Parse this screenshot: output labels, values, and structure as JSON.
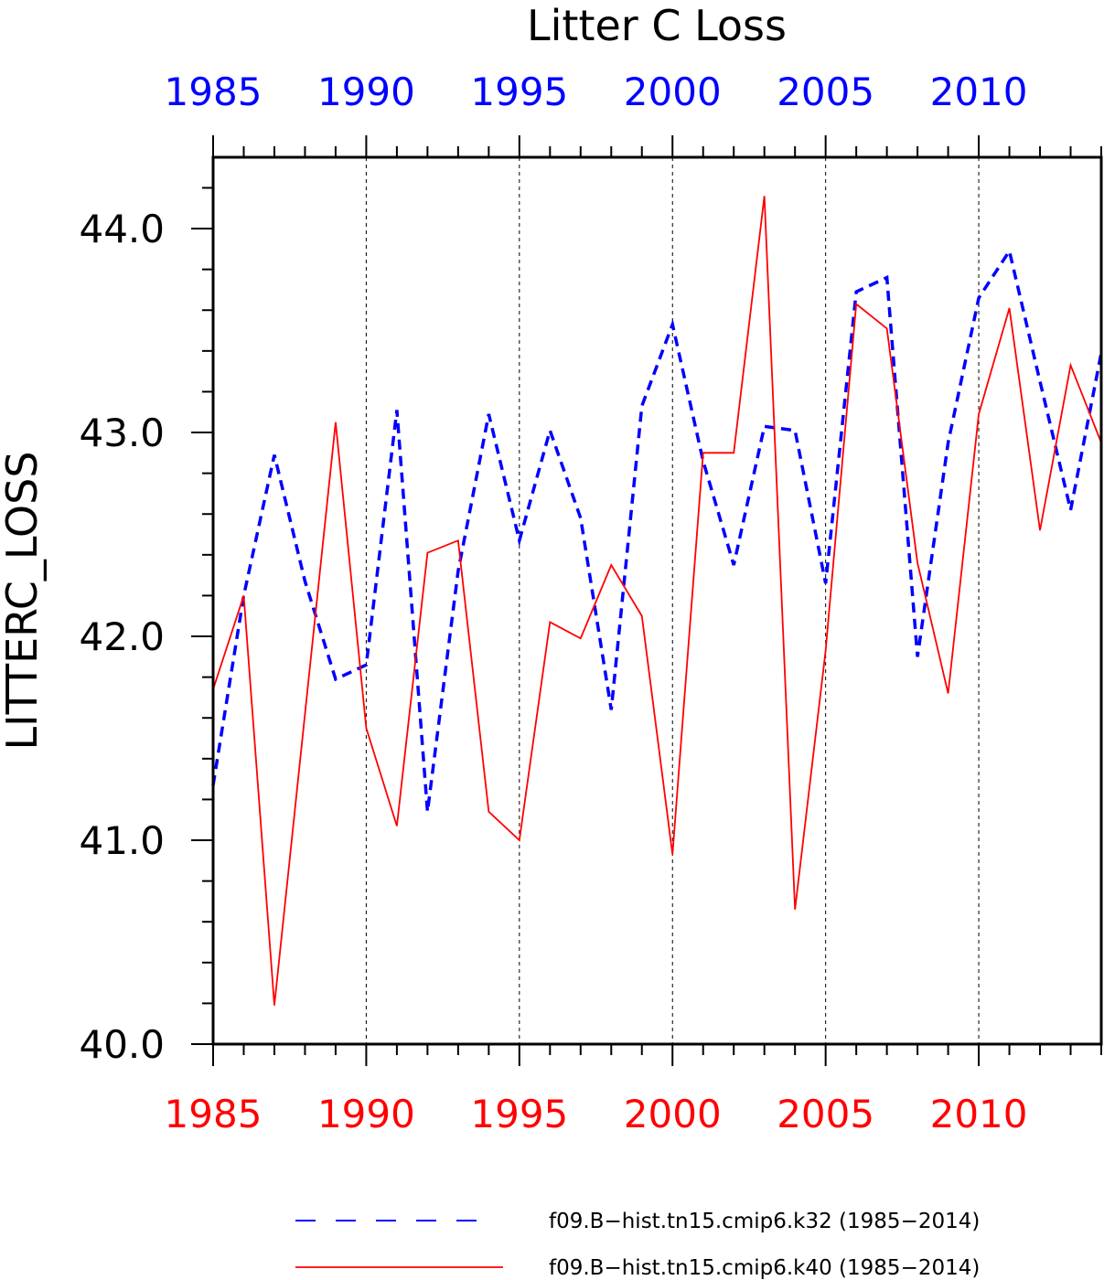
{
  "chart_data": {
    "type": "line",
    "title": "Litter C Loss",
    "ylabel": "LITTERC_LOSS",
    "xlabel": "",
    "xlim": [
      1985,
      2014
    ],
    "ylim": [
      40.0,
      44.35
    ],
    "x_ticks": [
      "1985",
      "1990",
      "1995",
      "2000",
      "2005",
      "2010"
    ],
    "y_ticks": [
      "40.0",
      "41.0",
      "42.0",
      "43.0",
      "44.0"
    ],
    "grid": "vertical dashed at major x ticks",
    "legend_position": "bottom",
    "top_axis_color": "#0000ff",
    "bottom_axis_color": "#ff0000",
    "x": [
      1985,
      1986,
      1987,
      1988,
      1989,
      1990,
      1991,
      1992,
      1993,
      1994,
      1995,
      1996,
      1997,
      1998,
      1999,
      2000,
      2001,
      2002,
      2003,
      2004,
      2005,
      2006,
      2007,
      2008,
      2009,
      2010,
      2011,
      2012,
      2013,
      2014
    ],
    "series": [
      {
        "name": "f09.B−hist.tn15.cmip6.k32 (1985−2014)",
        "color": "#0000ff",
        "dash": "dashed",
        "values": [
          41.27,
          42.2,
          42.89,
          42.27,
          41.79,
          41.86,
          43.11,
          41.14,
          42.32,
          43.09,
          42.47,
          43.01,
          42.58,
          41.64,
          43.13,
          43.53,
          42.86,
          42.35,
          43.03,
          43.01,
          42.26,
          43.69,
          43.76,
          41.9,
          42.95,
          43.66,
          43.89,
          43.25,
          42.62,
          43.39
        ]
      },
      {
        "name": "f09.B−hist.tn15.cmip6.k40 (1985−2014)",
        "color": "#ff0000",
        "dash": "solid",
        "values": [
          41.74,
          42.2,
          40.19,
          41.62,
          43.05,
          41.55,
          41.07,
          42.41,
          42.47,
          41.14,
          41.0,
          42.07,
          41.99,
          42.35,
          42.1,
          40.93,
          42.9,
          42.9,
          44.16,
          40.66,
          41.93,
          43.63,
          43.51,
          42.36,
          41.72,
          43.09,
          43.61,
          42.52,
          43.33,
          42.95
        ]
      }
    ]
  }
}
